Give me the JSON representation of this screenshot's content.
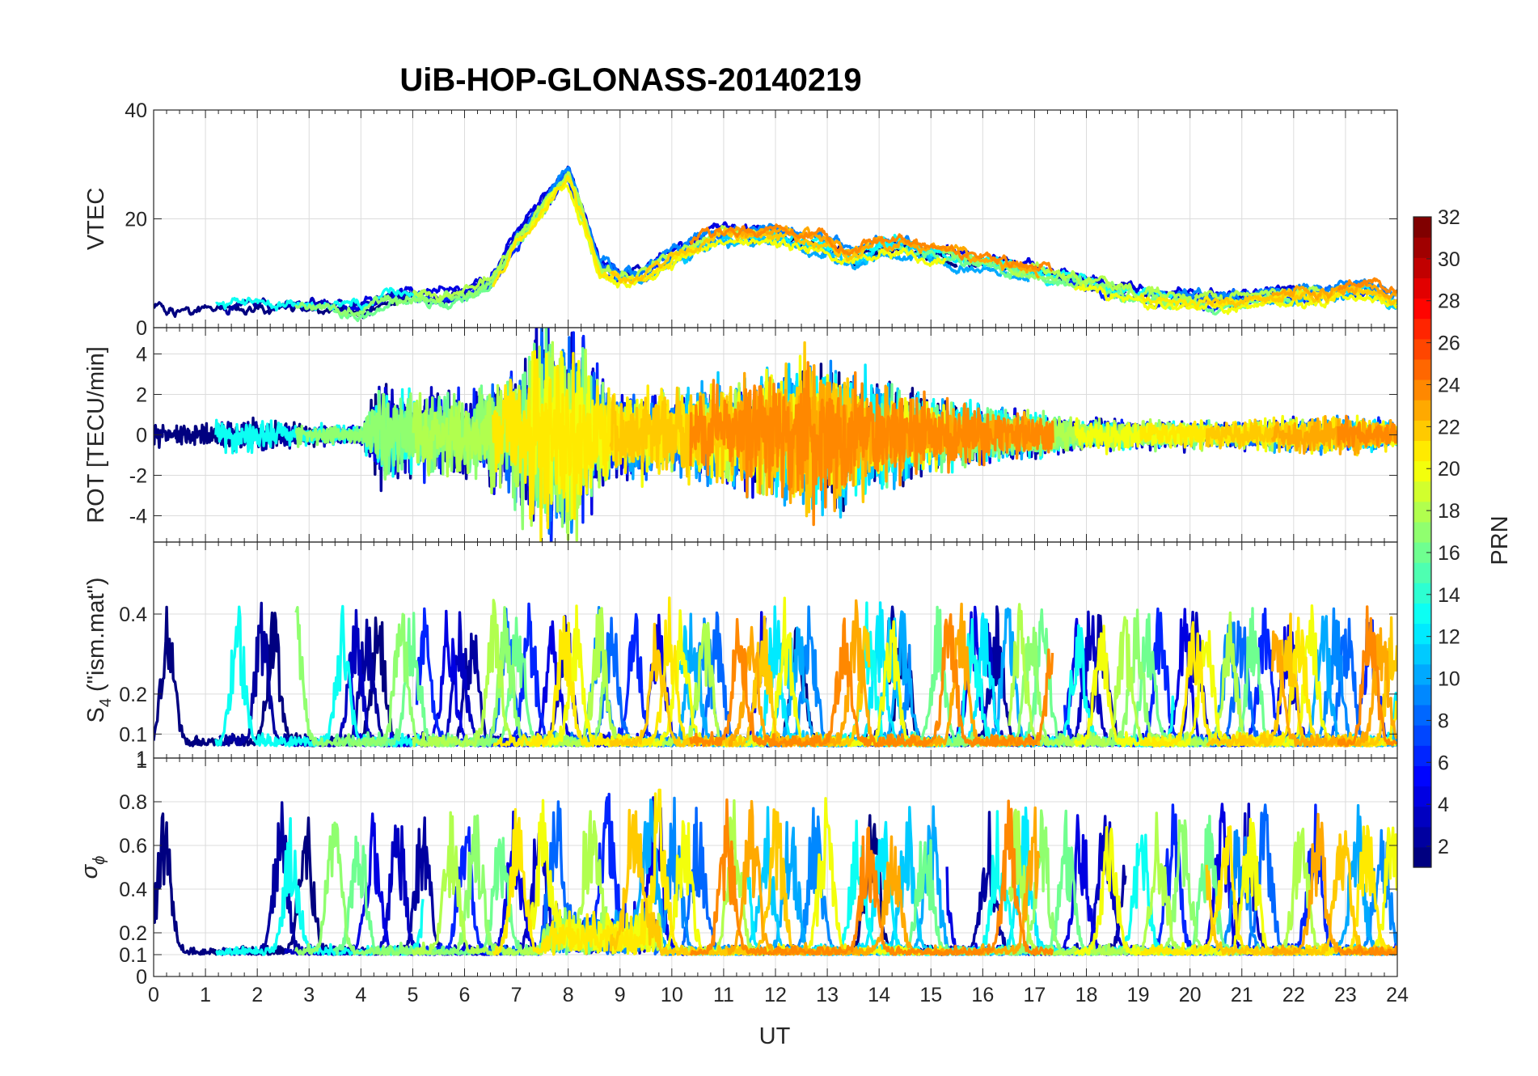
{
  "chart_data": [
    {
      "type": "line",
      "panel": "vtec",
      "title": "UiB-HOP-GLONASS-20140219",
      "ylabel": "VTEC",
      "ylim": [
        0,
        40
      ],
      "yticks": [
        0,
        20,
        40
      ],
      "xlim": [
        0,
        24
      ],
      "color_by": "PRN",
      "envelope_x": [
        0,
        1,
        2,
        3,
        4,
        4.5,
        5,
        5.5,
        6,
        6.5,
        7,
        7.5,
        7.8,
        8,
        8.3,
        8.6,
        9,
        9.5,
        10,
        10.5,
        11,
        11.5,
        12,
        12.5,
        13,
        13.5,
        14,
        14.5,
        15,
        15.5,
        16,
        16.5,
        17,
        17.5,
        18,
        18.5,
        19,
        19.5,
        20,
        20.5,
        21,
        21.5,
        22,
        22.5,
        23,
        23.5,
        24
      ],
      "envelope_mean": [
        4,
        4,
        4,
        4,
        3,
        5,
        6,
        5,
        6,
        8,
        16,
        22,
        26,
        28,
        20,
        11,
        9,
        10,
        13,
        15,
        17,
        17,
        17,
        16,
        15,
        13,
        15,
        15,
        14,
        13,
        12,
        11,
        10,
        9,
        8,
        7,
        6,
        5,
        5,
        5,
        5,
        6,
        6,
        6,
        7,
        7,
        5
      ]
    },
    {
      "type": "line",
      "panel": "rot",
      "ylabel": "ROT [TECU/min]",
      "ylim": [
        -5.3,
        5.3
      ],
      "yticks": [
        -4,
        -2,
        0,
        2,
        4
      ],
      "xlim": [
        0,
        24
      ],
      "activity_x": [
        0,
        1,
        2,
        3,
        4,
        4.4,
        5,
        6,
        7,
        7.5,
        8,
        8.5,
        9,
        10,
        11,
        12,
        13,
        14,
        15,
        16,
        17,
        18,
        19,
        20,
        21,
        22,
        23,
        24
      ],
      "activity_amp": [
        0.6,
        0.7,
        0.8,
        0.5,
        0.4,
        2.5,
        1.8,
        1.8,
        3.0,
        5.0,
        5.3,
        3.0,
        1.8,
        2.0,
        2.4,
        3.0,
        3.5,
        2.4,
        1.8,
        1.3,
        1.0,
        0.7,
        0.6,
        0.6,
        0.6,
        0.8,
        0.9,
        0.6
      ]
    },
    {
      "type": "line",
      "panel": "s4",
      "ylabel": "S",
      "ylabel_subscript": "4",
      "ylabel_suffix": "  (\"ism.mat\")",
      "ylim": [
        0.04,
        0.58
      ],
      "yticks": [
        0.1,
        0.2,
        0.4
      ],
      "xlim": [
        0,
        24
      ]
    },
    {
      "type": "line",
      "panel": "sigma_phi",
      "ylabel": "σ",
      "ylabel_subscript": "ϕ",
      "ylim": [
        0,
        1
      ],
      "yticks": [
        0,
        0.1,
        0.2,
        0.4,
        0.6,
        0.8,
        1
      ],
      "xlim": [
        0,
        24
      ],
      "xticks": [
        0,
        1,
        2,
        3,
        4,
        5,
        6,
        7,
        8,
        9,
        10,
        11,
        12,
        13,
        14,
        15,
        16,
        17,
        18,
        19,
        20,
        21,
        22,
        23,
        24
      ],
      "xlabel": "UT"
    },
    {
      "type": "colorbar",
      "label": "PRN",
      "range": [
        1,
        32
      ],
      "ticks": [
        2,
        4,
        6,
        8,
        10,
        12,
        14,
        16,
        18,
        20,
        22,
        24,
        26,
        28,
        30,
        32
      ],
      "colormap": "jet"
    }
  ],
  "figure": {
    "title": "UiB-HOP-GLONASS-20140219",
    "xlabel": "UT",
    "colorbar_label": "PRN",
    "top_tick_overlap_label": "1"
  }
}
